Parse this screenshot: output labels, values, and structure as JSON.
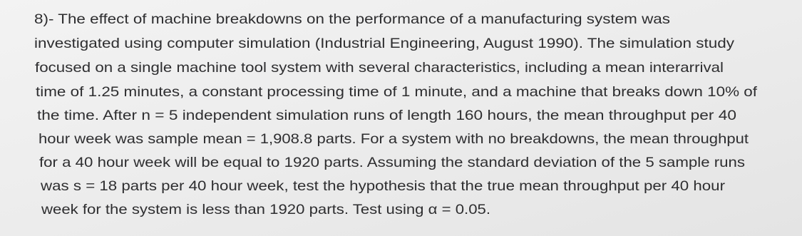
{
  "problem": {
    "lines": [
      "8)- The effect of machine breakdowns on the performance of a manufacturing system was",
      "investigated using computer simulation (Industrial Engineering, August 1990). The simulation study",
      "focused on a single machine tool system with several characteristics, including a mean interarrival",
      "time of 1.25 minutes, a constant processing time of 1 minute, and a machine that breaks down 10% of",
      "the time. After n = 5 independent simulation runs of length 160 hours, the mean throughput per 40",
      "hour week was sample mean = 1,908.8 parts. For a system with no breakdowns, the mean throughput",
      "for a 40 hour week will be equal to 1920 parts. Assuming the standard deviation of the 5 sample runs",
      "was s = 18 parts per 40 hour week, test the hypothesis that the true mean throughput per 40 hour",
      "week for the system is less than 1920 parts. Test using α = 0.05."
    ]
  }
}
